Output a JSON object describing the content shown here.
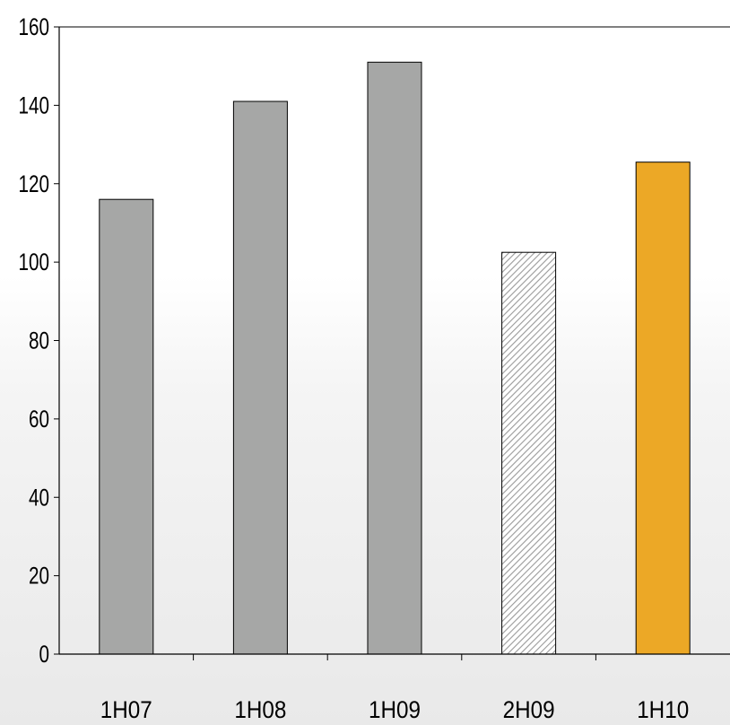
{
  "chart_data": {
    "type": "bar",
    "title": "",
    "xlabel": "",
    "ylabel": "",
    "categories": [
      "1H07",
      "1H08",
      "1H09",
      "2H09",
      "1H10"
    ],
    "values": [
      116,
      141,
      151,
      102.5,
      125.5
    ],
    "ylim": [
      0,
      160
    ],
    "yticks": [
      0,
      20,
      40,
      60,
      80,
      100,
      120,
      140,
      160
    ],
    "ytick_labels": [
      "0",
      "20",
      "40",
      "60",
      "80",
      "100",
      "120",
      "140",
      "160"
    ],
    "grid": false,
    "legend": "none",
    "bar_styles": [
      "solid-grey",
      "solid-grey",
      "solid-grey",
      "hatched",
      "solid-orange"
    ],
    "colors": {
      "grey_bar": "#a6a7a6",
      "highlight_bar": "#eca826",
      "hatch_bar_background": "#ffffff",
      "hatch_bar_lines": "#9a9a9a",
      "axis": "#000000",
      "background_top": "#ffffff",
      "background_bottom": "#e9e9e9"
    }
  }
}
